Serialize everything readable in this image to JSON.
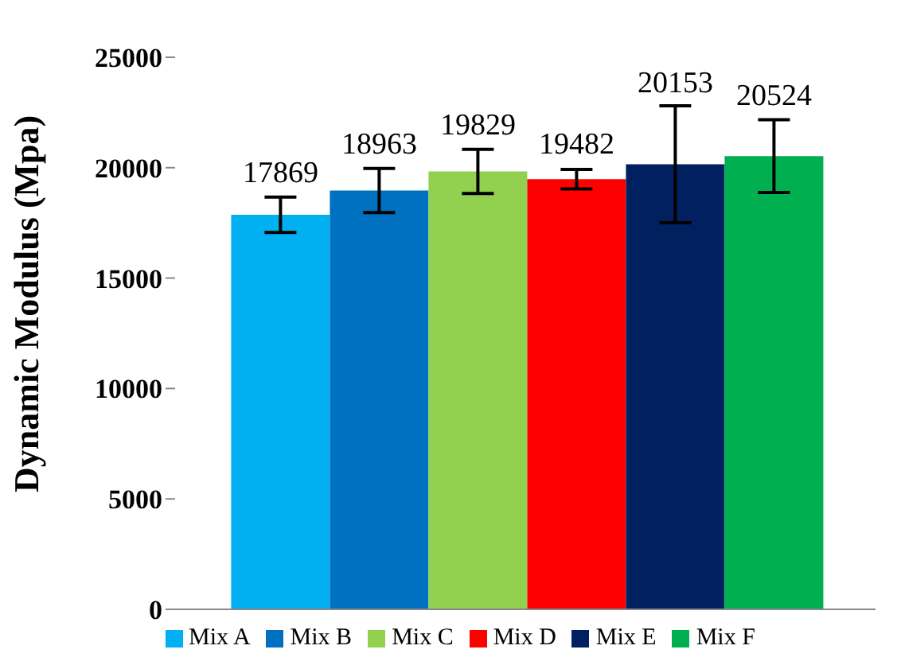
{
  "chart_data": {
    "type": "bar",
    "ylabel": "Dynamic Modulus (Mpa)",
    "categories": [
      null
    ],
    "series": [
      {
        "name": "Mix A",
        "color": "#00b0f0",
        "values": [
          17869
        ],
        "errors": [
          800
        ]
      },
      {
        "name": "Mix B",
        "color": "#0070c0",
        "values": [
          18963
        ],
        "errors": [
          1000
        ]
      },
      {
        "name": "Mix C",
        "color": "#92d050",
        "values": [
          19829
        ],
        "errors": [
          1000
        ]
      },
      {
        "name": "Mix D",
        "color": "#ff0000",
        "values": [
          19482
        ],
        "errors": [
          440
        ]
      },
      {
        "name": "Mix E",
        "color": "#002060",
        "values": [
          20153
        ],
        "errors": [
          2650
        ]
      },
      {
        "name": "Mix F",
        "color": "#00b050",
        "values": [
          20524
        ],
        "errors": [
          1650
        ]
      }
    ],
    "ylim": [
      0,
      25000
    ],
    "yticks": [
      0,
      5000,
      10000,
      15000,
      20000,
      25000
    ],
    "grid": false,
    "legend": "bottom",
    "data_labels": true
  }
}
